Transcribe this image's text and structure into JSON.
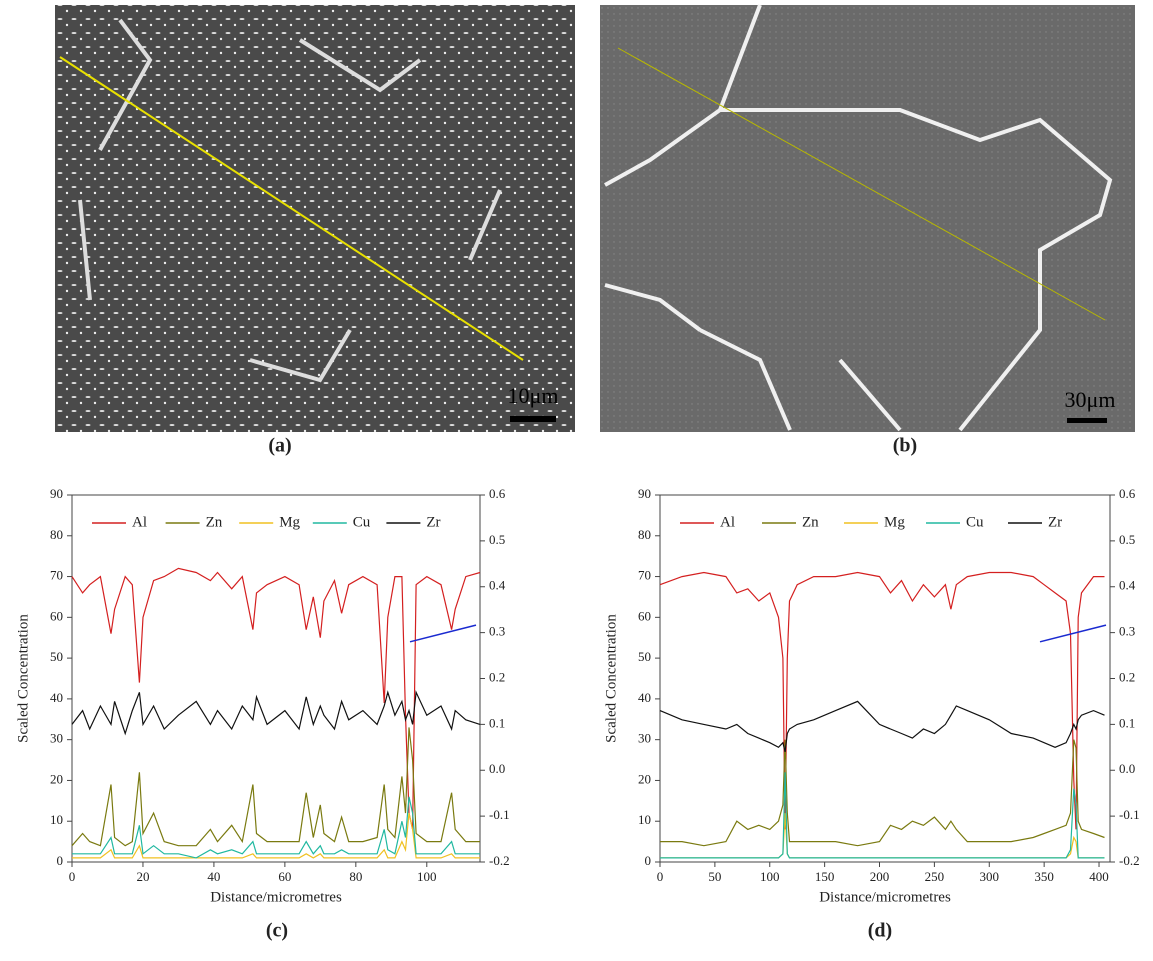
{
  "panels": [
    {
      "caption": "(a)",
      "scale_bar": "10μm"
    },
    {
      "caption": "(b)",
      "scale_bar": "30μm"
    },
    {
      "caption": "(c)"
    },
    {
      "caption": "(d)"
    }
  ],
  "chart_data": [
    {
      "type": "line",
      "xlabel": "Distance/micrometres",
      "ylabel": "Scaled Concentration",
      "legend": "top",
      "x": [
        0,
        3,
        5,
        8,
        11,
        12,
        15,
        17,
        19,
        20,
        23,
        26,
        30,
        35,
        39,
        41,
        45,
        48,
        51,
        52,
        55,
        60,
        64,
        66,
        68,
        70,
        71,
        74,
        76,
        78,
        82,
        86,
        88,
        89,
        91,
        93,
        94,
        95,
        96,
        97,
        100,
        104,
        107,
        108,
        111,
        115
      ],
      "xlim": [
        0,
        115
      ],
      "xticks": [
        0,
        20,
        40,
        60,
        80,
        100
      ],
      "ylim": [
        0,
        90
      ],
      "yticks": [
        0,
        10,
        20,
        30,
        40,
        50,
        60,
        70,
        80,
        90
      ],
      "y2lim": [
        -0.2,
        0.6
      ],
      "y2ticks": [
        -0.2,
        -0.1,
        {
          "value": 0,
          "label": "0.0"
        },
        0.1,
        0.2,
        0.3,
        0.4,
        0.5,
        0.6
      ],
      "series": [
        {
          "name": "Al",
          "color": "#d42020",
          "values": [
            70,
            66,
            68,
            70,
            56,
            62,
            70,
            68,
            44,
            60,
            69,
            70,
            72,
            71,
            69,
            71,
            67,
            70,
            57,
            66,
            68,
            70,
            68,
            57,
            65,
            55,
            64,
            69,
            61,
            68,
            70,
            68,
            39,
            60,
            70,
            70,
            36,
            12,
            8,
            68,
            70,
            68,
            57,
            62,
            70,
            71
          ]
        },
        {
          "name": "Zn",
          "color": "#7a7a10",
          "values": [
            4,
            7,
            5,
            4,
            19,
            6,
            4,
            5,
            22,
            7,
            12,
            5,
            4,
            4,
            8,
            5,
            9,
            5,
            19,
            7,
            5,
            5,
            5,
            17,
            6,
            14,
            7,
            5,
            11,
            5,
            5,
            6,
            19,
            8,
            6,
            21,
            12,
            33,
            25,
            7,
            5,
            5,
            17,
            8,
            5,
            5
          ]
        },
        {
          "name": "Mg",
          "color": "#f0c020",
          "values": [
            1,
            1,
            1,
            1,
            3,
            1,
            1,
            1,
            4,
            1,
            1,
            1,
            1,
            1,
            1,
            1,
            1,
            1,
            2,
            1,
            1,
            1,
            1,
            2,
            1,
            2,
            1,
            1,
            1,
            1,
            1,
            1,
            3,
            1,
            1,
            5,
            3,
            12,
            8,
            1,
            1,
            1,
            2,
            1,
            1,
            1
          ]
        },
        {
          "name": "Cu",
          "color": "#20b8a0",
          "values": [
            2,
            2,
            2,
            2,
            6,
            2,
            2,
            2,
            9,
            2,
            4,
            2,
            2,
            1,
            3,
            2,
            3,
            2,
            5,
            2,
            2,
            2,
            2,
            5,
            2,
            4,
            2,
            2,
            3,
            2,
            2,
            2,
            8,
            3,
            2,
            10,
            6,
            16,
            12,
            2,
            2,
            2,
            5,
            2,
            2,
            2
          ]
        },
        {
          "name": "Zr",
          "color": "#111111",
          "axis": "y2",
          "values": [
            0.1,
            0.13,
            0.09,
            0.14,
            0.1,
            0.15,
            0.08,
            0.13,
            0.17,
            0.1,
            0.14,
            0.09,
            0.12,
            0.15,
            0.1,
            0.13,
            0.09,
            0.14,
            0.11,
            0.16,
            0.1,
            0.13,
            0.09,
            0.16,
            0.1,
            0.14,
            0.12,
            0.09,
            0.15,
            0.11,
            0.13,
            0.1,
            0.14,
            0.17,
            0.12,
            0.15,
            0.11,
            0.13,
            0.1,
            0.17,
            0.12,
            0.14,
            0.09,
            0.13,
            0.11,
            0.1
          ]
        }
      ]
    },
    {
      "type": "line",
      "xlabel": "Distance/micrometres",
      "ylabel": "Scaled Concentration",
      "legend": "top",
      "x": [
        0,
        20,
        40,
        60,
        70,
        80,
        90,
        100,
        108,
        112,
        114,
        116,
        118,
        125,
        140,
        160,
        180,
        200,
        210,
        220,
        230,
        240,
        250,
        260,
        265,
        270,
        280,
        300,
        320,
        340,
        350,
        360,
        370,
        374,
        377,
        379,
        381,
        384,
        395,
        405
      ],
      "xlim": [
        0,
        410
      ],
      "xticks": [
        0,
        50,
        100,
        150,
        200,
        250,
        300,
        350,
        400
      ],
      "ylim": [
        0,
        90
      ],
      "yticks": [
        0,
        10,
        20,
        30,
        40,
        50,
        60,
        70,
        80,
        90
      ],
      "y2lim": [
        -0.2,
        0.6
      ],
      "y2ticks": [
        -0.2,
        -0.1,
        {
          "value": 0,
          "label": "0.0"
        },
        0.1,
        0.2,
        0.3,
        0.4,
        0.5,
        0.6
      ],
      "series": [
        {
          "name": "Al",
          "color": "#d42020",
          "values": [
            68,
            70,
            71,
            70,
            66,
            67,
            64,
            66,
            60,
            50,
            8,
            50,
            64,
            68,
            70,
            70,
            71,
            70,
            66,
            69,
            64,
            68,
            65,
            68,
            62,
            68,
            70,
            71,
            71,
            70,
            68,
            66,
            64,
            56,
            20,
            8,
            60,
            66,
            70,
            70
          ]
        },
        {
          "name": "Zn",
          "color": "#7a7a10",
          "values": [
            5,
            5,
            4,
            5,
            10,
            8,
            9,
            8,
            10,
            14,
            30,
            12,
            5,
            5,
            5,
            5,
            4,
            5,
            9,
            8,
            10,
            9,
            11,
            8,
            10,
            8,
            5,
            5,
            5,
            6,
            7,
            8,
            9,
            12,
            30,
            28,
            10,
            8,
            7,
            6
          ]
        },
        {
          "name": "Mg",
          "color": "#f0c020",
          "values": [
            1,
            1,
            1,
            1,
            1,
            1,
            1,
            1,
            1,
            2,
            12,
            2,
            1,
            1,
            1,
            1,
            1,
            1,
            1,
            1,
            1,
            1,
            1,
            1,
            1,
            1,
            1,
            1,
            1,
            1,
            1,
            1,
            1,
            2,
            6,
            5,
            1,
            1,
            1,
            1
          ]
        },
        {
          "name": "Cu",
          "color": "#20b8a0",
          "values": [
            1,
            1,
            1,
            1,
            1,
            1,
            1,
            1,
            1,
            2,
            22,
            2,
            1,
            1,
            1,
            1,
            1,
            1,
            1,
            1,
            1,
            1,
            1,
            1,
            1,
            1,
            1,
            1,
            1,
            1,
            1,
            1,
            1,
            3,
            18,
            14,
            1,
            1,
            1,
            1
          ]
        },
        {
          "name": "Zr",
          "color": "#111111",
          "axis": "y2",
          "values": [
            0.13,
            0.11,
            0.1,
            0.09,
            0.1,
            0.08,
            0.07,
            0.06,
            0.05,
            0.06,
            0.04,
            0.08,
            0.09,
            0.1,
            0.11,
            0.13,
            0.15,
            0.1,
            0.09,
            0.08,
            0.07,
            0.09,
            0.08,
            0.1,
            0.12,
            0.14,
            0.13,
            0.11,
            0.08,
            0.07,
            0.06,
            0.05,
            0.06,
            0.08,
            0.1,
            0.09,
            0.11,
            0.12,
            0.13,
            0.12
          ]
        }
      ]
    }
  ]
}
